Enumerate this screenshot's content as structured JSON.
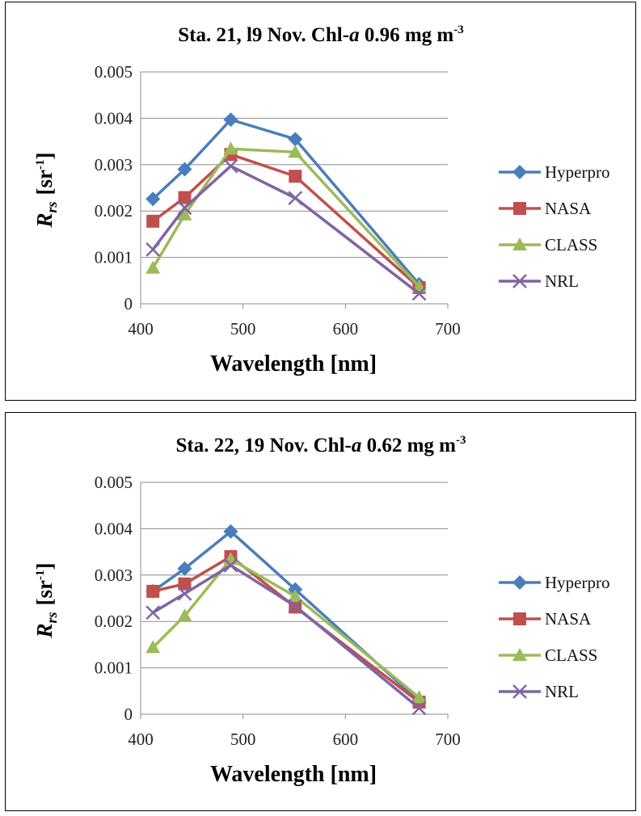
{
  "legend": [
    {
      "name": "Hyperpro",
      "color": "#4a7ebb",
      "marker": "diamond"
    },
    {
      "name": "NASA",
      "color": "#c0504d",
      "marker": "square"
    },
    {
      "name": "CLASS",
      "color": "#9bbb59",
      "marker": "triangle"
    },
    {
      "name": "NRL",
      "color": "#8064a2",
      "marker": "x"
    }
  ],
  "chart_data": [
    {
      "type": "line",
      "title_main": "Sta. 21, l9 Nov. Chl-",
      "title_italic": "a",
      "title_value": " 0.96 mg m",
      "title_sup": "-3",
      "xlabel": "Wavelength [nm]",
      "ylabel_main": "R",
      "ylabel_sub": "rs",
      "ylabel_unit": "[sr",
      "ylabel_sup": "-1",
      "ylabel_close": "]",
      "xlim": [
        400,
        700
      ],
      "ylim": [
        0,
        0.005
      ],
      "xticks": [
        "400",
        "500",
        "600",
        "700"
      ],
      "yticks": [
        "0",
        "0.001",
        "0.002",
        "0.003",
        "0.004",
        "0.005"
      ],
      "x": [
        412,
        443,
        488,
        551,
        672
      ],
      "series": [
        {
          "name": "Hyperpro",
          "values": [
            0.00226,
            0.0029,
            0.00397,
            0.00355,
            0.00042
          ]
        },
        {
          "name": "NASA",
          "values": [
            0.00178,
            0.00229,
            0.00322,
            0.00275,
            0.00035
          ]
        },
        {
          "name": "CLASS",
          "values": [
            0.00077,
            0.00192,
            0.00334,
            0.00327,
            0.00037
          ]
        },
        {
          "name": "NRL",
          "values": [
            0.00117,
            0.00207,
            0.00297,
            0.00228,
            0.00022
          ]
        }
      ]
    },
    {
      "type": "line",
      "title_main": "Sta. 22, 19 Nov. Chl-",
      "title_italic": "a",
      "title_value": " 0.62 mg m",
      "title_sup": "-3",
      "xlabel": "Wavelength [nm]",
      "ylabel_main": "R",
      "ylabel_sub": "rs",
      "ylabel_unit": "[sr",
      "ylabel_sup": "-1",
      "ylabel_close": "]",
      "xlim": [
        400,
        700
      ],
      "ylim": [
        0,
        0.005
      ],
      "xticks": [
        "400",
        "500",
        "600",
        "700"
      ],
      "yticks": [
        "0",
        "0.001",
        "0.002",
        "0.003",
        "0.004",
        "0.005"
      ],
      "x": [
        412,
        443,
        488,
        551,
        672
      ],
      "series": [
        {
          "name": "Hyperpro",
          "values": [
            0.00265,
            0.00314,
            0.00394,
            0.00269,
            0.00028
          ]
        },
        {
          "name": "NASA",
          "values": [
            0.00265,
            0.00281,
            0.0034,
            0.00231,
            0.00026
          ]
        },
        {
          "name": "CLASS",
          "values": [
            0.00144,
            0.00212,
            0.00334,
            0.00254,
            0.00036
          ]
        },
        {
          "name": "NRL",
          "values": [
            0.00219,
            0.0026,
            0.00321,
            0.00233,
            0.00013
          ]
        }
      ]
    }
  ]
}
